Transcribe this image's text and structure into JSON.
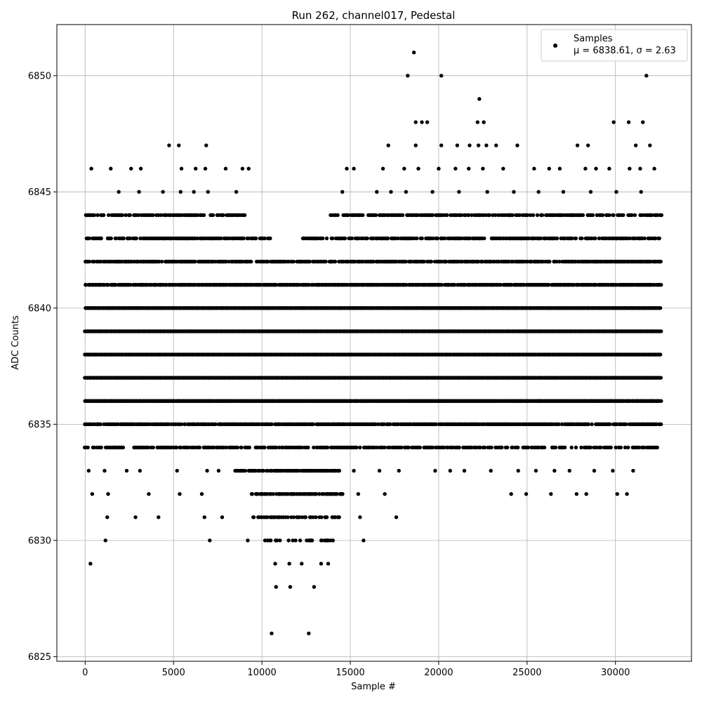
{
  "chart_data": {
    "type": "scatter",
    "title": "Run 262, channel017, Pedestal",
    "xlabel": "Sample #",
    "ylabel": "ADC Counts",
    "xlim": [
      -1600,
      34300
    ],
    "ylim": [
      6824.8,
      6852.2
    ],
    "xticks": [
      0,
      5000,
      10000,
      15000,
      20000,
      25000,
      30000
    ],
    "yticks": [
      6825,
      6830,
      6835,
      6840,
      6845,
      6850
    ],
    "grid": true,
    "legend_position": "top-right",
    "marker_color": "#000000",
    "series": [
      {
        "name": "Samples",
        "label_line2": "μ = 6838.61, σ = 2.63",
        "points": [
          [
            300,
            6829
          ],
          [
            1150,
            6830
          ],
          [
            7050,
            6830
          ],
          [
            9200,
            6830
          ],
          [
            15750,
            6830
          ],
          [
            10550,
            6826
          ],
          [
            12650,
            6826
          ],
          [
            10800,
            6828
          ],
          [
            11600,
            6828
          ],
          [
            12950,
            6828
          ],
          [
            10750,
            6829
          ],
          [
            11550,
            6829
          ],
          [
            12250,
            6829
          ],
          [
            13350,
            6829
          ],
          [
            13750,
            6829
          ],
          [
            1250,
            6831
          ],
          [
            2850,
            6831
          ],
          [
            4150,
            6831
          ],
          [
            6750,
            6831
          ],
          [
            7750,
            6831
          ],
          [
            15550,
            6831
          ],
          [
            17600,
            6831
          ],
          [
            400,
            6832
          ],
          [
            1300,
            6832
          ],
          [
            3600,
            6832
          ],
          [
            5350,
            6832
          ],
          [
            6600,
            6832
          ],
          [
            15450,
            6832
          ],
          [
            16950,
            6832
          ],
          [
            24100,
            6832
          ],
          [
            24950,
            6832
          ],
          [
            26350,
            6832
          ],
          [
            27800,
            6832
          ],
          [
            28350,
            6832
          ],
          [
            30100,
            6832
          ],
          [
            30650,
            6832
          ],
          [
            200,
            6833
          ],
          [
            1100,
            6833
          ],
          [
            2350,
            6833
          ],
          [
            3100,
            6833
          ],
          [
            5200,
            6833
          ],
          [
            6900,
            6833
          ],
          [
            7550,
            6833
          ],
          [
            15200,
            6833
          ],
          [
            16650,
            6833
          ],
          [
            17750,
            6833
          ],
          [
            19800,
            6833
          ],
          [
            20650,
            6833
          ],
          [
            21450,
            6833
          ],
          [
            22950,
            6833
          ],
          [
            24500,
            6833
          ],
          [
            25500,
            6833
          ],
          [
            26550,
            6833
          ],
          [
            27400,
            6833
          ],
          [
            28800,
            6833
          ],
          [
            29850,
            6833
          ],
          [
            31000,
            6833
          ],
          [
            18150,
            6845
          ],
          [
            19650,
            6845
          ],
          [
            21150,
            6845
          ],
          [
            22750,
            6845
          ],
          [
            24250,
            6845
          ],
          [
            25650,
            6845
          ],
          [
            27050,
            6845
          ],
          [
            28600,
            6845
          ],
          [
            30050,
            6845
          ],
          [
            31450,
            6845
          ],
          [
            14550,
            6845
          ],
          [
            16500,
            6845
          ],
          [
            17300,
            6845
          ],
          [
            1900,
            6845
          ],
          [
            3050,
            6845
          ],
          [
            4400,
            6845
          ],
          [
            5400,
            6845
          ],
          [
            6150,
            6845
          ],
          [
            6950,
            6845
          ],
          [
            8550,
            6845
          ],
          [
            350,
            6846
          ],
          [
            1450,
            6846
          ],
          [
            2600,
            6846
          ],
          [
            3150,
            6846
          ],
          [
            5450,
            6846
          ],
          [
            6250,
            6846
          ],
          [
            6800,
            6846
          ],
          [
            7950,
            6846
          ],
          [
            8900,
            6846
          ],
          [
            9250,
            6846
          ],
          [
            14800,
            6846
          ],
          [
            15200,
            6846
          ],
          [
            16850,
            6846
          ],
          [
            18050,
            6846
          ],
          [
            18850,
            6846
          ],
          [
            20000,
            6846
          ],
          [
            20950,
            6846
          ],
          [
            21700,
            6846
          ],
          [
            22500,
            6846
          ],
          [
            23650,
            6846
          ],
          [
            25400,
            6846
          ],
          [
            26250,
            6846
          ],
          [
            26850,
            6846
          ],
          [
            28300,
            6846
          ],
          [
            28900,
            6846
          ],
          [
            29650,
            6846
          ],
          [
            30800,
            6846
          ],
          [
            31400,
            6846
          ],
          [
            32200,
            6846
          ],
          [
            4750,
            6847
          ],
          [
            5300,
            6847
          ],
          [
            6850,
            6847
          ],
          [
            17150,
            6847
          ],
          [
            18700,
            6847
          ],
          [
            20150,
            6847
          ],
          [
            21050,
            6847
          ],
          [
            21750,
            6847
          ],
          [
            22250,
            6847
          ],
          [
            22700,
            6847
          ],
          [
            23250,
            6847
          ],
          [
            24450,
            6847
          ],
          [
            27850,
            6847
          ],
          [
            28450,
            6847
          ],
          [
            31150,
            6847
          ],
          [
            31950,
            6847
          ],
          [
            18700,
            6848
          ],
          [
            19050,
            6848
          ],
          [
            19350,
            6848
          ],
          [
            22200,
            6848
          ],
          [
            22550,
            6848
          ],
          [
            29900,
            6848
          ],
          [
            30750,
            6848
          ],
          [
            31550,
            6848
          ],
          [
            22300,
            6849
          ],
          [
            18250,
            6850
          ],
          [
            20150,
            6850
          ],
          [
            31750,
            6850
          ],
          [
            18600,
            6851
          ]
        ]
      }
    ],
    "levels": [
      {
        "y": 6834,
        "x_ranges": [
          [
            0,
            32400
          ]
        ],
        "density": 0.55
      },
      {
        "y": 6835,
        "x_ranges": [
          [
            0,
            32600
          ]
        ],
        "density": 0.8
      },
      {
        "y": 6836,
        "x_ranges": [
          [
            0,
            32600
          ]
        ],
        "density": 1.0
      },
      {
        "y": 6837,
        "x_ranges": [
          [
            0,
            32600
          ]
        ],
        "density": 1.0
      },
      {
        "y": 6838,
        "x_ranges": [
          [
            0,
            32600
          ]
        ],
        "density": 1.0
      },
      {
        "y": 6839,
        "x_ranges": [
          [
            0,
            32600
          ]
        ],
        "density": 1.0
      },
      {
        "y": 6840,
        "x_ranges": [
          [
            0,
            32600
          ]
        ],
        "density": 1.0
      },
      {
        "y": 6841,
        "x_ranges": [
          [
            0,
            32600
          ]
        ],
        "density": 0.9
      },
      {
        "y": 6842,
        "x_ranges": [
          [
            0,
            32600
          ]
        ],
        "density": 0.8
      },
      {
        "y": 6843,
        "x_ranges": [
          [
            0,
            10500
          ],
          [
            12300,
            32600
          ]
        ],
        "density": 0.65
      },
      {
        "y": 6844,
        "x_ranges": [
          [
            0,
            9100
          ],
          [
            13900,
            32600
          ]
        ],
        "density": 0.6
      },
      {
        "y": 6833,
        "x_ranges": [
          [
            8500,
            14400
          ]
        ],
        "density": 0.75
      },
      {
        "y": 6832,
        "x_ranges": [
          [
            9400,
            14600
          ]
        ],
        "density": 0.7
      },
      {
        "y": 6831,
        "x_ranges": [
          [
            9500,
            14400
          ]
        ],
        "density": 0.55
      },
      {
        "y": 6830,
        "x_ranges": [
          [
            10200,
            14200
          ]
        ],
        "density": 0.3
      }
    ]
  }
}
